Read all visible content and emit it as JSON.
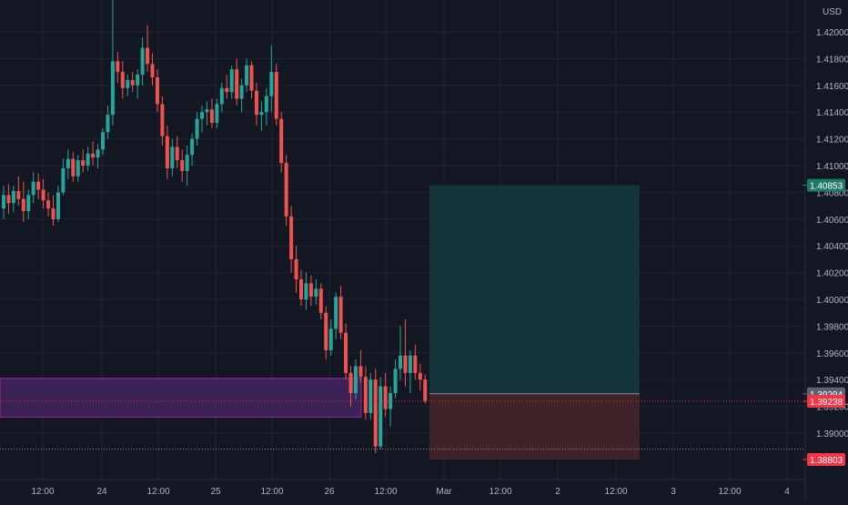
{
  "currency": "USD",
  "colors": {
    "background": "#131722",
    "grid": "#1f2433",
    "up": "#26a69a",
    "down": "#ef5350",
    "axis_text": "#b2b5be",
    "zone_fill": "#4a2566",
    "zone_border": "#9c27b0",
    "profit_fill": "#14363a",
    "loss_fill": "#3f2328",
    "target_badge": "#1e7a66",
    "entry_badge": "#5d6270",
    "current_badge": "#f23645"
  },
  "price_labels": {
    "target": "1.40853",
    "entry": "1.39294",
    "current": "1.39238",
    "stop": "1.38803"
  },
  "chart_data": {
    "type": "candlestick",
    "instrument_currency": "USD",
    "ylim": [
      1.3878,
      1.4225
    ],
    "y_ticks": [
      "1.42000",
      "1.41800",
      "1.41600",
      "1.41400",
      "1.41200",
      "1.41000",
      "1.40800",
      "1.40600",
      "1.40400",
      "1.40200",
      "1.40000",
      "1.39800",
      "1.39600",
      "1.39400",
      "1.39200",
      "1.39000"
    ],
    "x_ticks": [
      "12:00",
      "24",
      "12:00",
      "25",
      "12:00",
      "26",
      "12:00",
      "Mar",
      "12:00",
      "2",
      "12:00",
      "3",
      "12:00",
      "4"
    ],
    "grid": true,
    "ohlc": [
      [
        1.4068,
        1.4085,
        1.406,
        1.4078
      ],
      [
        1.4078,
        1.4086,
        1.4064,
        1.4072
      ],
      [
        1.4072,
        1.4085,
        1.4065,
        1.4081
      ],
      [
        1.4081,
        1.4092,
        1.407,
        1.4075
      ],
      [
        1.4075,
        1.4088,
        1.4058,
        1.4066
      ],
      [
        1.4066,
        1.4082,
        1.406,
        1.4078
      ],
      [
        1.4078,
        1.4095,
        1.4072,
        1.4088
      ],
      [
        1.4088,
        1.4094,
        1.4075,
        1.4082
      ],
      [
        1.4082,
        1.409,
        1.4068,
        1.4074
      ],
      [
        1.4074,
        1.408,
        1.4062,
        1.4068
      ],
      [
        1.4068,
        1.4078,
        1.4055,
        1.406
      ],
      [
        1.406,
        1.4085,
        1.4058,
        1.408
      ],
      [
        1.408,
        1.4105,
        1.4078,
        1.4098
      ],
      [
        1.4098,
        1.4112,
        1.409,
        1.4105
      ],
      [
        1.4105,
        1.411,
        1.4088,
        1.4092
      ],
      [
        1.4092,
        1.4108,
        1.4088,
        1.4104
      ],
      [
        1.4104,
        1.4112,
        1.4095,
        1.41
      ],
      [
        1.41,
        1.4114,
        1.4096,
        1.4109
      ],
      [
        1.4109,
        1.4118,
        1.41,
        1.4106
      ],
      [
        1.4106,
        1.4116,
        1.4098,
        1.4112
      ],
      [
        1.4112,
        1.4128,
        1.4108,
        1.4125
      ],
      [
        1.4125,
        1.4145,
        1.412,
        1.4138
      ],
      [
        1.4138,
        1.4225,
        1.413,
        1.4178
      ],
      [
        1.4178,
        1.4185,
        1.4162,
        1.417
      ],
      [
        1.417,
        1.4178,
        1.415,
        1.4158
      ],
      [
        1.4158,
        1.4168,
        1.4152,
        1.4164
      ],
      [
        1.4164,
        1.417,
        1.4155,
        1.416
      ],
      [
        1.416,
        1.4172,
        1.415,
        1.4168
      ],
      [
        1.4168,
        1.4196,
        1.416,
        1.4188
      ],
      [
        1.4188,
        1.4205,
        1.417,
        1.4176
      ],
      [
        1.4176,
        1.4184,
        1.416,
        1.4166
      ],
      [
        1.4166,
        1.4172,
        1.414,
        1.4146
      ],
      [
        1.4146,
        1.4152,
        1.4115,
        1.4122
      ],
      [
        1.4122,
        1.413,
        1.409,
        1.4098
      ],
      [
        1.4098,
        1.412,
        1.4092,
        1.4114
      ],
      [
        1.4114,
        1.4122,
        1.4098,
        1.4104
      ],
      [
        1.4104,
        1.4112,
        1.4088,
        1.4096
      ],
      [
        1.4096,
        1.4115,
        1.4085,
        1.4108
      ],
      [
        1.4108,
        1.4124,
        1.41,
        1.412
      ],
      [
        1.412,
        1.414,
        1.4115,
        1.4135
      ],
      [
        1.4135,
        1.4145,
        1.4125,
        1.414
      ],
      [
        1.414,
        1.4148,
        1.413,
        1.4142
      ],
      [
        1.4142,
        1.415,
        1.4128,
        1.4132
      ],
      [
        1.4132,
        1.415,
        1.4128,
        1.4146
      ],
      [
        1.4146,
        1.4162,
        1.414,
        1.4158
      ],
      [
        1.4158,
        1.4168,
        1.415,
        1.4155
      ],
      [
        1.4155,
        1.4175,
        1.415,
        1.4172
      ],
      [
        1.4172,
        1.418,
        1.4145,
        1.415
      ],
      [
        1.415,
        1.4165,
        1.414,
        1.416
      ],
      [
        1.416,
        1.418,
        1.4155,
        1.4175
      ],
      [
        1.4175,
        1.4178,
        1.415,
        1.4156
      ],
      [
        1.4156,
        1.4162,
        1.413,
        1.4138
      ],
      [
        1.4138,
        1.4148,
        1.4126,
        1.414
      ],
      [
        1.414,
        1.4158,
        1.413,
        1.4152
      ],
      [
        1.4152,
        1.419,
        1.414,
        1.417
      ],
      [
        1.417,
        1.4176,
        1.413,
        1.4135
      ],
      [
        1.4135,
        1.414,
        1.4095,
        1.4102
      ],
      [
        1.4102,
        1.4108,
        1.4055,
        1.4062
      ],
      [
        1.4062,
        1.407,
        1.402,
        1.403
      ],
      [
        1.403,
        1.404,
        1.4005,
        1.4015
      ],
      [
        1.4015,
        1.4022,
        1.3995,
        1.4
      ],
      [
        1.4,
        1.402,
        1.3992,
        1.4012
      ],
      [
        1.4012,
        1.4018,
        1.3995,
        1.4002
      ],
      [
        1.4002,
        1.4015,
        1.3996,
        1.4008
      ],
      [
        1.4008,
        1.4012,
        1.3985,
        1.399
      ],
      [
        1.399,
        1.3995,
        1.3955,
        1.3962
      ],
      [
        1.3962,
        1.3985,
        1.3958,
        1.3978
      ],
      [
        1.3978,
        1.4005,
        1.397,
        1.4002
      ],
      [
        1.4002,
        1.401,
        1.397,
        1.3975
      ],
      [
        1.3975,
        1.3982,
        1.394,
        1.3945
      ],
      [
        1.3945,
        1.395,
        1.392,
        1.393
      ],
      [
        1.393,
        1.3955,
        1.3925,
        1.395
      ],
      [
        1.395,
        1.3962,
        1.3938,
        1.3942
      ],
      [
        1.3942,
        1.395,
        1.391,
        1.3915
      ],
      [
        1.3915,
        1.3945,
        1.391,
        1.394
      ],
      [
        1.394,
        1.3948,
        1.3885,
        1.389
      ],
      [
        1.389,
        1.3942,
        1.3888,
        1.3935
      ],
      [
        1.3935,
        1.3945,
        1.3912,
        1.3918
      ],
      [
        1.3918,
        1.3935,
        1.3905,
        1.393
      ],
      [
        1.393,
        1.3955,
        1.3926,
        1.3948
      ],
      [
        1.3948,
        1.398,
        1.394,
        1.3958
      ],
      [
        1.3958,
        1.3985,
        1.3935,
        1.3945
      ],
      [
        1.3945,
        1.3962,
        1.393,
        1.3958
      ],
      [
        1.3958,
        1.3966,
        1.394,
        1.3945
      ],
      [
        1.3945,
        1.3952,
        1.3932,
        1.394
      ],
      [
        1.394,
        1.3944,
        1.3922,
        1.3924
      ]
    ],
    "trade_position": {
      "target": 1.40853,
      "entry": 1.39294,
      "stop": 1.38803,
      "current": 1.39238
    },
    "zone": {
      "top": 1.3941,
      "bottom": 1.3912
    },
    "support_level": 1.3888,
    "current_price_line": 1.39238
  }
}
